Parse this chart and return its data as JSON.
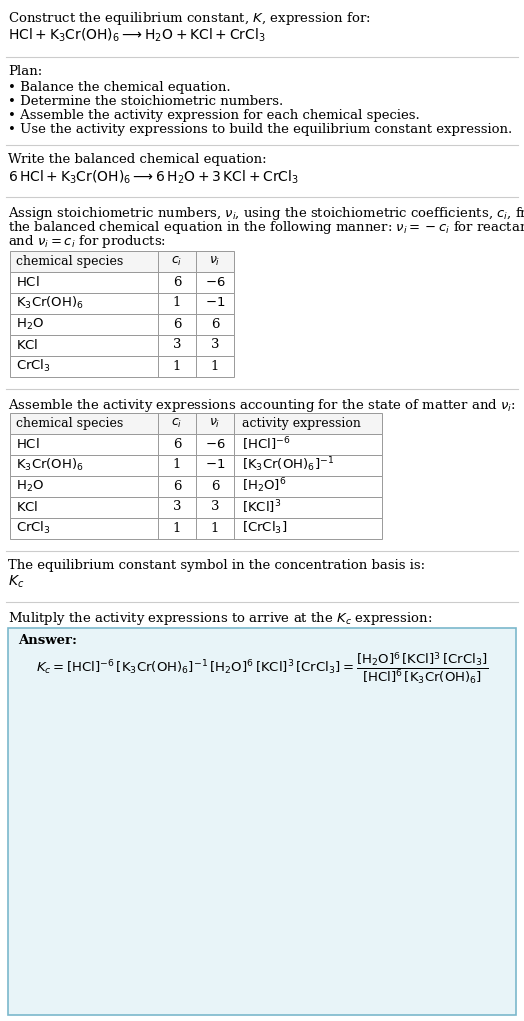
{
  "title_line1": "Construct the equilibrium constant, $K$, expression for:",
  "title_line2": "$\\text{HCl} + \\text{K}_3\\text{Cr(OH)}_6 \\longrightarrow \\text{H}_2\\text{O} + \\text{KCl} + \\text{CrCl}_3$",
  "plan_header": "Plan:",
  "plan_items": [
    "• Balance the chemical equation.",
    "• Determine the stoichiometric numbers.",
    "• Assemble the activity expression for each chemical species.",
    "• Use the activity expressions to build the equilibrium constant expression."
  ],
  "balanced_header": "Write the balanced chemical equation:",
  "balanced_eq": "$6\\,\\text{HCl} + \\text{K}_3\\text{Cr(OH)}_6 \\longrightarrow 6\\,\\text{H}_2\\text{O} + 3\\,\\text{KCl} + \\text{CrCl}_3$",
  "stoich_intro_lines": [
    "Assign stoichiometric numbers, $\\nu_i$, using the stoichiometric coefficients, $c_i$, from",
    "the balanced chemical equation in the following manner: $\\nu_i = -c_i$ for reactants",
    "and $\\nu_i = c_i$ for products:"
  ],
  "table1_headers": [
    "chemical species",
    "$c_i$",
    "$\\nu_i$"
  ],
  "table1_rows": [
    [
      "$\\text{HCl}$",
      "6",
      "$-6$"
    ],
    [
      "$\\text{K}_3\\text{Cr(OH)}_6$",
      "1",
      "$-1$"
    ],
    [
      "$\\text{H}_2\\text{O}$",
      "6",
      "6"
    ],
    [
      "$\\text{KCl}$",
      "3",
      "3"
    ],
    [
      "$\\text{CrCl}_3$",
      "1",
      "1"
    ]
  ],
  "activity_intro": "Assemble the activity expressions accounting for the state of matter and $\\nu_i$:",
  "table2_headers": [
    "chemical species",
    "$c_i$",
    "$\\nu_i$",
    "activity expression"
  ],
  "table2_rows": [
    [
      "$\\text{HCl}$",
      "6",
      "$-6$",
      "$[\\text{HCl}]^{-6}$"
    ],
    [
      "$\\text{K}_3\\text{Cr(OH)}_6$",
      "1",
      "$-1$",
      "$[\\text{K}_3\\text{Cr(OH)}_6]^{-1}$"
    ],
    [
      "$\\text{H}_2\\text{O}$",
      "6",
      "6",
      "$[\\text{H}_2\\text{O}]^{6}$"
    ],
    [
      "$\\text{KCl}$",
      "3",
      "3",
      "$[\\text{KCl}]^{3}$"
    ],
    [
      "$\\text{CrCl}_3$",
      "1",
      "1",
      "$[\\text{CrCl}_3]$"
    ]
  ],
  "kc_intro": "The equilibrium constant symbol in the concentration basis is:",
  "kc_symbol": "$K_c$",
  "multiply_intro": "Mulitply the activity expressions to arrive at the $K_c$ expression:",
  "answer_label": "Answer:",
  "answer_eq": "$K_c = [\\text{HCl}]^{-6}\\,[\\text{K}_3\\text{Cr(OH)}_6]^{-1}\\,[\\text{H}_2\\text{O}]^{6}\\,[\\text{KCl}]^{3}\\,[\\text{CrCl}_3] = \\dfrac{[\\text{H}_2\\text{O}]^6\\,[\\text{KCl}]^3\\,[\\text{CrCl}_3]}{[\\text{HCl}]^6\\,[\\text{K}_3\\text{Cr(OH)}_6]}$",
  "answer_box_color": "#e8f4f8",
  "answer_box_border": "#7bb8cc",
  "bg_color": "#ffffff",
  "text_color": "#000000",
  "table_border_color": "#999999",
  "font_size": 9.5,
  "line_color": "#cccccc"
}
